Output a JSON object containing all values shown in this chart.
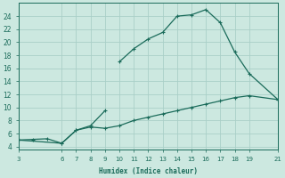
{
  "xlabel": "Humidex (Indice chaleur)",
  "bg_color": "#cce8e0",
  "line_color": "#1a6b5a",
  "grid_color": "#aacfc8",
  "series1_x": [
    3,
    4,
    5,
    6,
    7,
    8,
    9
  ],
  "series1_y": [
    5.0,
    5.1,
    5.2,
    4.5,
    6.5,
    7.2,
    9.5
  ],
  "series2_x": [
    3,
    6,
    7,
    8,
    9,
    10,
    11,
    12,
    13,
    14,
    15,
    16,
    17,
    18,
    19,
    21
  ],
  "series2_y": [
    5.0,
    4.5,
    6.5,
    7.0,
    6.8,
    7.2,
    8.0,
    8.5,
    9.0,
    9.5,
    10.0,
    10.5,
    11.0,
    11.5,
    11.8,
    11.2
  ],
  "series3_x": [
    10,
    11,
    12,
    13,
    14,
    15,
    16,
    17,
    18,
    19,
    21
  ],
  "series3_y": [
    17.0,
    19.0,
    20.5,
    21.5,
    24.0,
    24.2,
    25.0,
    23.0,
    18.5,
    15.2,
    11.2
  ],
  "xlim": [
    3,
    21
  ],
  "ylim": [
    3.5,
    26
  ],
  "yticks": [
    4,
    6,
    8,
    10,
    12,
    14,
    16,
    18,
    20,
    22,
    24
  ],
  "xticks": [
    3,
    6,
    7,
    8,
    9,
    10,
    11,
    12,
    13,
    14,
    15,
    16,
    17,
    18,
    19,
    21
  ],
  "marker_size": 2.5,
  "line_width": 0.9
}
